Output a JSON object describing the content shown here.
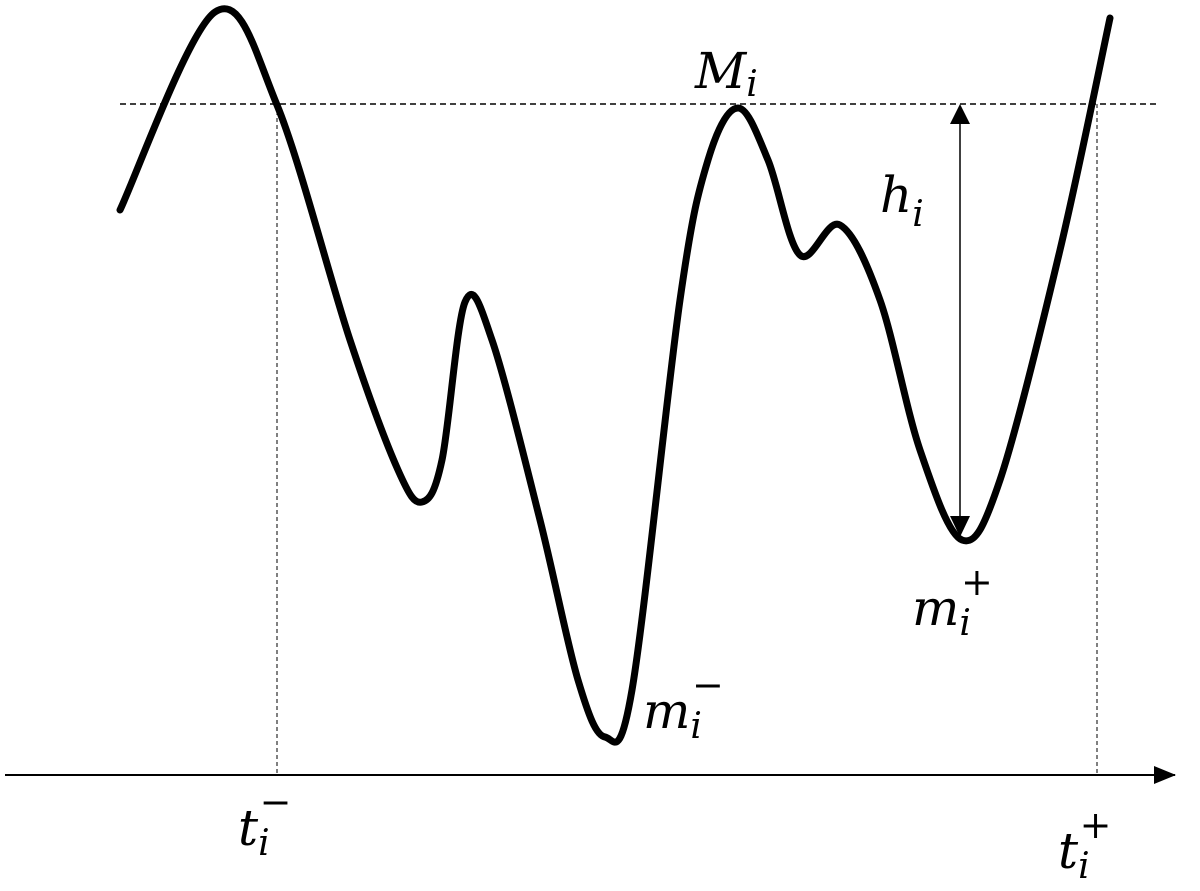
{
  "labels": {
    "M": {
      "base": "M",
      "sub": "i",
      "sup": ""
    },
    "h": {
      "base": "h",
      "sub": "i",
      "sup": ""
    },
    "m_plus": {
      "base": "m",
      "sub": "i",
      "sup": "+"
    },
    "m_minus": {
      "base": "m",
      "sub": "i",
      "sup": "−"
    },
    "t_minus": {
      "base": "t",
      "sub": "i",
      "sup": "−"
    },
    "t_plus": {
      "base": "t",
      "sub": "i",
      "sup": "+"
    }
  },
  "colors": {
    "line": "#000000",
    "background": "#ffffff"
  }
}
